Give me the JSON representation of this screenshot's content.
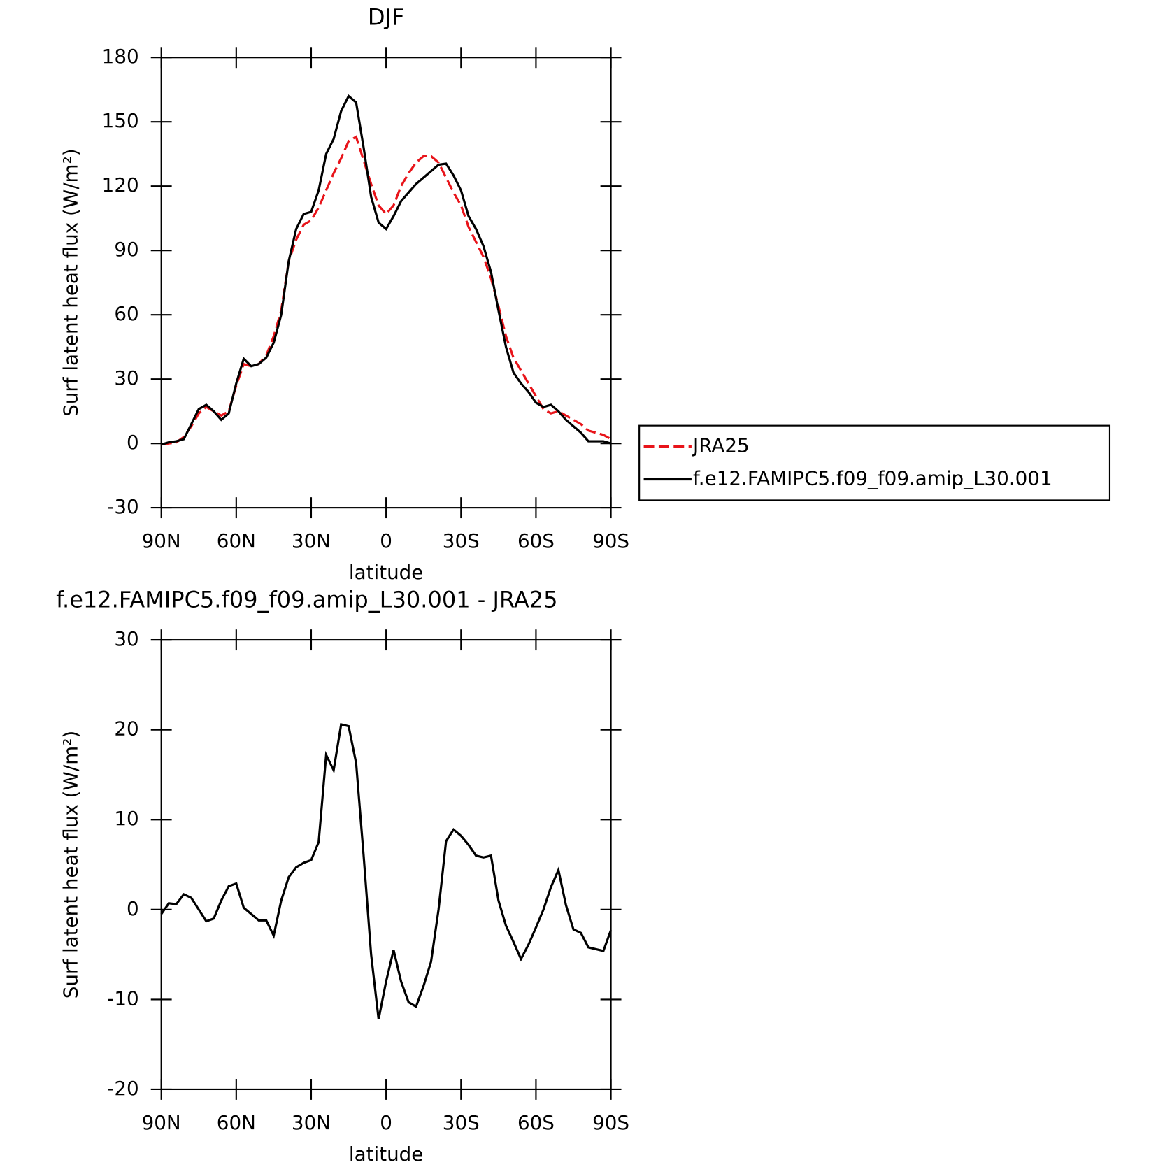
{
  "chart_data": [
    {
      "type": "line",
      "title": "DJF",
      "xlabel": "latitude",
      "ylabel": "Surf latent heat flux (W/m²)",
      "xlim": [
        90,
        -90
      ],
      "ylim": [
        -30,
        180
      ],
      "xticks": [
        {
          "value": 90,
          "label": "90N"
        },
        {
          "value": 60,
          "label": "60N"
        },
        {
          "value": 30,
          "label": "30N"
        },
        0,
        {
          "value": -30,
          "label": "30S"
        },
        {
          "value": -60,
          "label": "60S"
        },
        {
          "value": -90,
          "label": "90S"
        }
      ],
      "yticks": [
        -30,
        0,
        30,
        60,
        90,
        120,
        150,
        180
      ],
      "legend": "right",
      "x": [
        90,
        87,
        84,
        81,
        78,
        75,
        72,
        69,
        66,
        63,
        60,
        57,
        54,
        51,
        48,
        45,
        42,
        39,
        36,
        33,
        30,
        27,
        24,
        21,
        18,
        15,
        12,
        9,
        6,
        3,
        0,
        -3,
        -6,
        -9,
        -12,
        -15,
        -18,
        -21,
        -24,
        -27,
        -30,
        -33,
        -36,
        -39,
        -42,
        -45,
        -48,
        -51,
        -54,
        -57,
        -60,
        -63,
        -66,
        -69,
        -72,
        -75,
        -78,
        -81,
        -84,
        -87,
        -90
      ],
      "series": [
        {
          "name": "JRA25",
          "color": "#e8141a",
          "dash": true,
          "values": [
            -0.5,
            0,
            0.5,
            3,
            8,
            14,
            17,
            15,
            13,
            15,
            27,
            37,
            36,
            37,
            41,
            50,
            62,
            85,
            95,
            102,
            104,
            110,
            118,
            126,
            133,
            141,
            143,
            132,
            121,
            111,
            107,
            111,
            120,
            126,
            131,
            134,
            134,
            131,
            124,
            117,
            111,
            101,
            94,
            87,
            77,
            64,
            50,
            40,
            34,
            28,
            22,
            16,
            14,
            15,
            13,
            11,
            9,
            6,
            5,
            4,
            2
          ]
        },
        {
          "name": "f.e12.FAMIPC5.f09_f09.amip_L30.001",
          "color": "#000000",
          "dash": false,
          "values": [
            -0.5,
            0.5,
            1,
            2,
            9,
            16,
            18,
            15,
            11,
            14,
            28,
            39.5,
            36,
            37,
            40,
            47,
            60,
            85,
            100,
            107,
            108,
            118,
            135,
            142,
            155,
            162,
            159,
            138,
            115,
            103,
            100,
            106,
            113,
            117,
            121,
            124,
            127,
            130,
            130.5,
            125,
            118,
            106,
            100,
            92,
            80,
            62,
            45,
            33,
            28,
            24,
            19,
            17,
            18,
            15,
            11,
            8,
            5,
            1,
            1,
            1,
            0
          ]
        }
      ]
    },
    {
      "type": "line",
      "title": "f.e12.FAMIPC5.f09_f09.amip_L30.001 - JRA25",
      "xlabel": "latitude",
      "ylabel": "Surf latent heat flux (W/m²)",
      "xlim": [
        90,
        -90
      ],
      "ylim": [
        -20,
        30
      ],
      "xticks": [
        {
          "value": 90,
          "label": "90N"
        },
        {
          "value": 60,
          "label": "60N"
        },
        {
          "value": 30,
          "label": "30N"
        },
        0,
        {
          "value": -30,
          "label": "30S"
        },
        {
          "value": -60,
          "label": "60S"
        },
        {
          "value": -90,
          "label": "90S"
        }
      ],
      "yticks": [
        -20,
        -10,
        0,
        10,
        20,
        30
      ],
      "color": "#000000",
      "x": [
        90,
        87,
        84,
        81,
        78,
        75,
        72,
        69,
        66,
        63,
        60,
        57,
        54,
        51,
        48,
        45,
        42,
        39,
        36,
        33,
        30,
        27,
        24,
        21,
        18,
        15,
        12,
        9,
        6,
        3,
        0,
        -3,
        -6,
        -9,
        -12,
        -15,
        -18,
        -21,
        -24,
        -27,
        -30,
        -33,
        -36,
        -39,
        -42,
        -45,
        -48,
        -51,
        -54,
        -57,
        -60,
        -63,
        -66,
        -69,
        -72,
        -75,
        -78,
        -81,
        -84,
        -87,
        -90
      ],
      "values": [
        -0.5,
        0.7,
        0.6,
        1.7,
        1.3,
        0,
        -1.3,
        -1,
        1,
        2.6,
        2.9,
        0.2,
        -0.5,
        -1.2,
        -1.2,
        -2.9,
        1,
        3.6,
        4.7,
        5.2,
        5.5,
        7.5,
        17.2,
        15.5,
        20.6,
        20.4,
        16.3,
        6,
        -5,
        -12.2,
        -8,
        -4.5,
        -8,
        -10.3,
        -10.8,
        -8.5,
        -5.8,
        0,
        7.6,
        8.9,
        8.2,
        7.2,
        6,
        5.8,
        6,
        1,
        -1.8,
        -3.6,
        -5.5,
        -3.9,
        -2,
        0,
        2.5,
        4.4,
        0.5,
        -2.2,
        -2.6,
        -4.2,
        -4.4,
        -4.6,
        -2.3
      ]
    }
  ]
}
